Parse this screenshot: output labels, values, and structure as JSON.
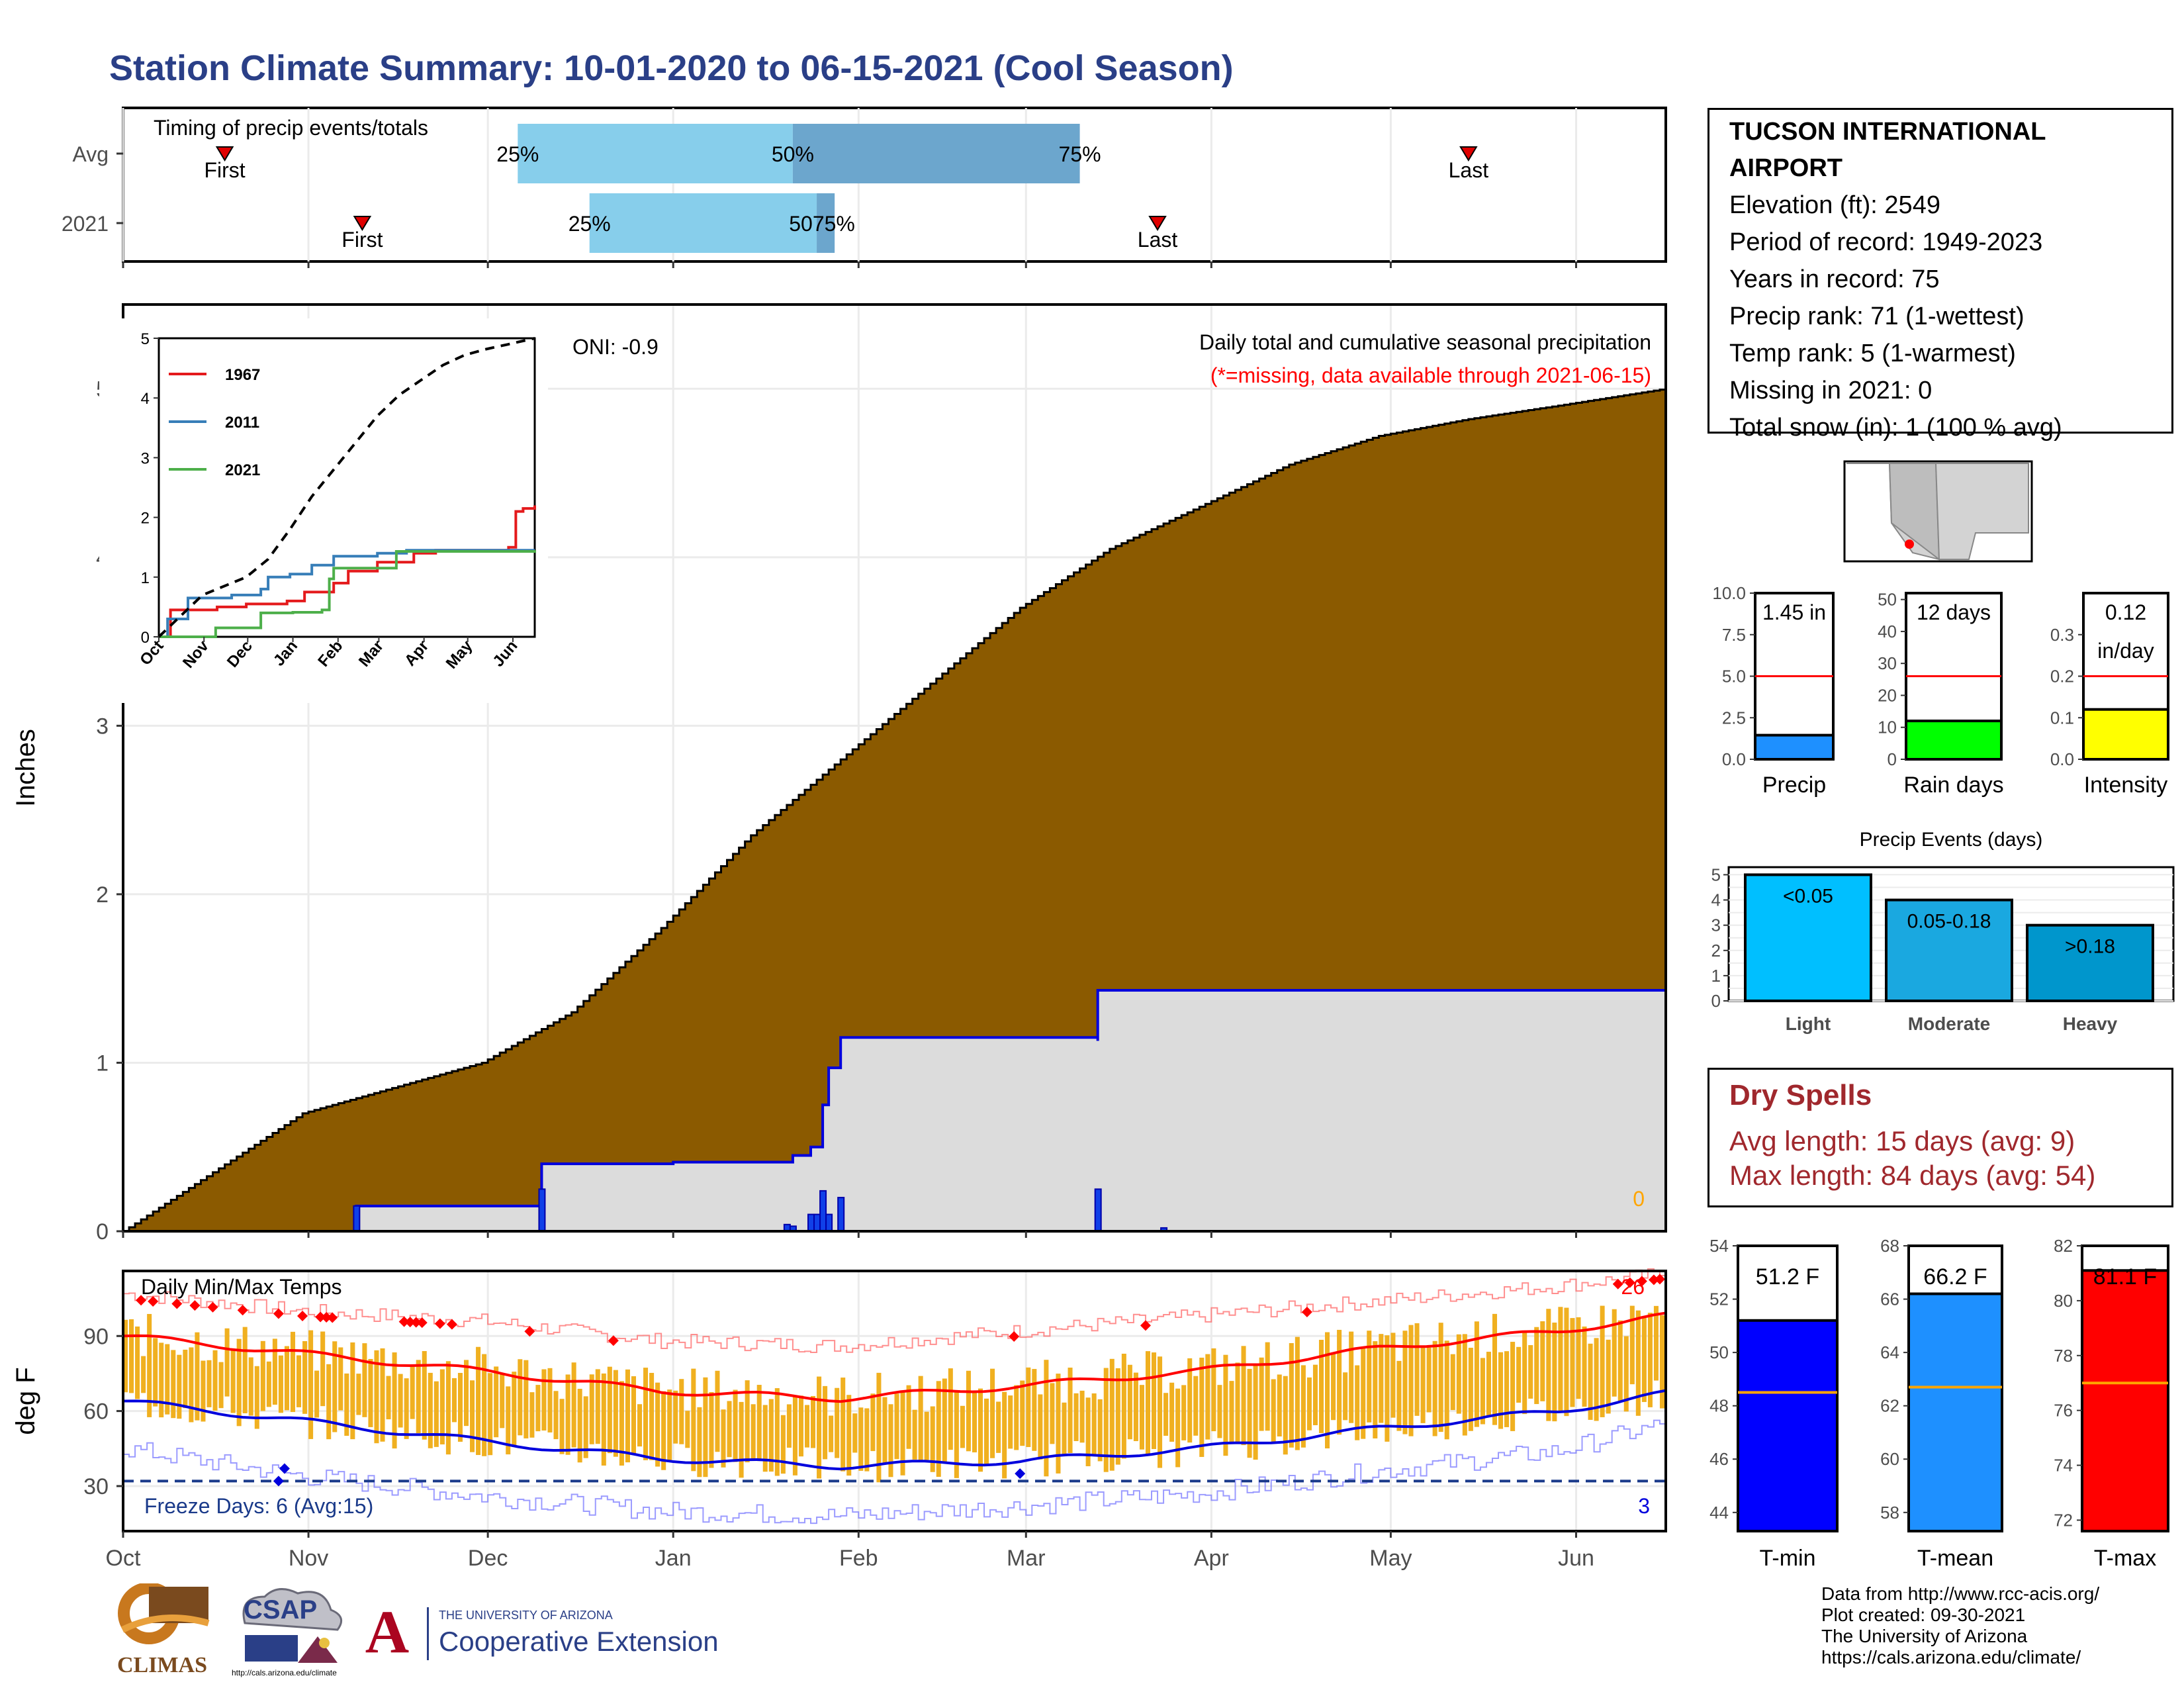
{
  "title": "Station Climate Summary: 10-01-2020 to 06-15-2021 (Cool Season)",
  "station": {
    "name": "TUCSON INTERNATIONAL AIRPORT",
    "elevation": "Elevation (ft): 2549",
    "period": "Period of record: 1949-2023",
    "years": "Years in record: 75",
    "precip_rank": "Precip rank: 71 (1-wettest)",
    "temp_rank": "Temp rank: 5 (1-warmest)",
    "missing": "Missing in 2021: 0",
    "snow": "Total snow (in): 1 (100 % avg)"
  },
  "dry_spells": {
    "heading": "Dry Spells",
    "avg": "Avg length: 15 days (avg: 9)",
    "max": "Max length: 84 days (avg: 54)"
  },
  "credits": {
    "line1": "Data from http://www.rcc-acis.org/",
    "line2": "Plot created: 09-30-2021",
    "line3": "The University of Arizona",
    "line4": "https://cals.arizona.edu/climate/"
  },
  "logos": {
    "climas": "CLIMAS",
    "csap": "CSAP",
    "csap_url": "http://cals.arizona.edu/climate",
    "ua_small": "THE UNIVERSITY OF ARIZONA",
    "ua_big": "Cooperative Extension",
    "ua_letter": "A"
  },
  "colors": {
    "title": "#2a3f87",
    "cum_avg": "#8b5a00",
    "cum_2021_fill": "#dcdcdc",
    "daily_bar": "#1040e8",
    "temp_bar": "#f0b020",
    "tmax_avg": "#ff0000",
    "tmin_avg": "#0000dd",
    "dry_spells": "#a0282d"
  },
  "chart_data": [
    {
      "type": "bar",
      "panel": "timing",
      "title": "Timing of precip events/totals",
      "categories": [
        "Avg",
        "2021"
      ],
      "series": [
        {
          "name": "Avg",
          "first": "10-18",
          "p25": "12-06",
          "p50": "01-21",
          "p75": "03-10",
          "last": "05-14"
        },
        {
          "name": "2021",
          "first": "11-10",
          "p25": "12-18",
          "p50": "01-25",
          "p75": "01-28",
          "last": "03-23"
        }
      ],
      "labels": {
        "first": "First",
        "last": "Last",
        "p25": "25%",
        "p50": "50%",
        "p75": "75%",
        "p50_p75_overlap": "5075%"
      }
    },
    {
      "type": "area",
      "panel": "main_precip",
      "ylabel": "Inches",
      "annotation_title": "Daily total and cumulative seasonal precipitation",
      "annotation_missing": "(*=missing, data available through 2021-06-15)",
      "oni": "ONI: -0.9",
      "missing_count": "0",
      "ylim": [
        0,
        5.5
      ],
      "yticks": [
        0,
        1,
        2,
        3,
        4,
        5
      ],
      "months": [
        "Oct",
        "Nov",
        "Dec",
        "Jan",
        "Feb",
        "Mar",
        "Apr",
        "May",
        "Jun"
      ],
      "avg_cumulative": [
        [
          0,
          0
        ],
        [
          30,
          0.7
        ],
        [
          60,
          1.0
        ],
        [
          75,
          1.3
        ],
        [
          90,
          1.8
        ],
        [
          105,
          2.35
        ],
        [
          120,
          2.8
        ],
        [
          135,
          3.25
        ],
        [
          150,
          3.7
        ],
        [
          165,
          4.05
        ],
        [
          180,
          4.3
        ],
        [
          195,
          4.55
        ],
        [
          210,
          4.72
        ],
        [
          225,
          4.82
        ],
        [
          240,
          4.9
        ],
        [
          258,
          5.0
        ]
      ],
      "y2021_cumulative": [
        [
          0,
          0
        ],
        [
          39,
          0.15
        ],
        [
          70,
          0.4
        ],
        [
          92,
          0.41
        ],
        [
          112,
          0.45
        ],
        [
          115,
          0.5
        ],
        [
          117,
          0.75
        ],
        [
          118,
          0.97
        ],
        [
          120,
          1.15
        ],
        [
          163,
          1.13
        ],
        [
          163,
          1.43
        ],
        [
          258,
          1.45
        ]
      ],
      "y2021_daily": [
        [
          39,
          0.15
        ],
        [
          70,
          0.25
        ],
        [
          111,
          0.04
        ],
        [
          112,
          0.03
        ],
        [
          115,
          0.1
        ],
        [
          116,
          0.1
        ],
        [
          117,
          0.24
        ],
        [
          118,
          0.1
        ],
        [
          120,
          0.2
        ],
        [
          163,
          0.25
        ],
        [
          174,
          0.02
        ]
      ]
    },
    {
      "type": "line",
      "panel": "inset",
      "ylim": [
        0,
        5
      ],
      "yticks": [
        0,
        1,
        2,
        3,
        4,
        5
      ],
      "months": [
        "Oct",
        "Nov",
        "Dec",
        "Jan",
        "Feb",
        "Mar",
        "Apr",
        "May",
        "Jun"
      ],
      "series": [
        {
          "name": "1967",
          "color": "#e41a1c",
          "points": [
            [
              0,
              0
            ],
            [
              8,
              0.45
            ],
            [
              40,
              0.5
            ],
            [
              60,
              0.55
            ],
            [
              88,
              0.6
            ],
            [
              100,
              0.75
            ],
            [
              120,
              0.9
            ],
            [
              130,
              1.1
            ],
            [
              150,
              1.25
            ],
            [
              165,
              1.25
            ],
            [
              175,
              1.4
            ],
            [
              190,
              1.45
            ],
            [
              210,
              1.45
            ],
            [
              240,
              1.5
            ],
            [
              245,
              2.1
            ],
            [
              250,
              2.15
            ],
            [
              258,
              2.2
            ]
          ]
        },
        {
          "name": "2011",
          "color": "#377eb8",
          "points": [
            [
              0,
              0
            ],
            [
              6,
              0.3
            ],
            [
              20,
              0.65
            ],
            [
              50,
              0.7
            ],
            [
              70,
              0.8
            ],
            [
              75,
              1.0
            ],
            [
              90,
              1.05
            ],
            [
              105,
              1.2
            ],
            [
              120,
              1.35
            ],
            [
              150,
              1.4
            ],
            [
              170,
              1.45
            ],
            [
              258,
              1.45
            ]
          ]
        },
        {
          "name": "2021",
          "color": "#4daf4a",
          "points": [
            [
              0,
              0
            ],
            [
              39,
              0.15
            ],
            [
              70,
              0.4
            ],
            [
              92,
              0.41
            ],
            [
              112,
              0.45
            ],
            [
              117,
              0.97
            ],
            [
              120,
              1.15
            ],
            [
              163,
              1.43
            ],
            [
              258,
              1.45
            ]
          ]
        },
        {
          "name": "avg",
          "color": "#000000",
          "dashed": true,
          "points": [
            [
              0,
              0
            ],
            [
              30,
              0.7
            ],
            [
              60,
              1.0
            ],
            [
              75,
              1.3
            ],
            [
              90,
              1.8
            ],
            [
              105,
              2.35
            ],
            [
              120,
              2.8
            ],
            [
              135,
              3.25
            ],
            [
              150,
              3.7
            ],
            [
              165,
              4.05
            ],
            [
              180,
              4.3
            ],
            [
              195,
              4.55
            ],
            [
              210,
              4.72
            ],
            [
              225,
              4.82
            ],
            [
              240,
              4.9
            ],
            [
              258,
              5.0
            ]
          ]
        }
      ]
    },
    {
      "type": "bar",
      "panel": "temps",
      "title": "Daily Min/Max Temps",
      "ylabel": "deg F",
      "ylim": [
        12,
        116
      ],
      "yticks": [
        30,
        60,
        90
      ],
      "months": [
        "Oct",
        "Nov",
        "Dec",
        "Jan",
        "Feb",
        "Mar",
        "Apr",
        "May",
        "Jun"
      ],
      "freeze_line": 32,
      "freeze_label": "Freeze Days: 6 (Avg:15)",
      "record_high_count": "26",
      "record_low_count": "3",
      "tmax_avg": [
        [
          0,
          90
        ],
        [
          30,
          83
        ],
        [
          60,
          76
        ],
        [
          90,
          68
        ],
        [
          120,
          65
        ],
        [
          150,
          70
        ],
        [
          180,
          76
        ],
        [
          210,
          85
        ],
        [
          240,
          92
        ],
        [
          258,
          98
        ]
      ],
      "tmin_avg": [
        [
          0,
          64
        ],
        [
          30,
          56
        ],
        [
          60,
          48
        ],
        [
          90,
          41
        ],
        [
          120,
          38
        ],
        [
          150,
          40
        ],
        [
          180,
          45
        ],
        [
          210,
          53
        ],
        [
          240,
          60
        ],
        [
          258,
          67
        ]
      ],
      "tmax_record": [
        [
          0,
          107
        ],
        [
          30,
          100
        ],
        [
          60,
          96
        ],
        [
          90,
          88
        ],
        [
          120,
          86
        ],
        [
          150,
          92
        ],
        [
          180,
          98
        ],
        [
          210,
          104
        ],
        [
          240,
          110
        ],
        [
          258,
          115
        ]
      ],
      "tmin_record": [
        [
          0,
          45
        ],
        [
          30,
          34
        ],
        [
          60,
          26
        ],
        [
          90,
          20
        ],
        [
          120,
          18
        ],
        [
          150,
          22
        ],
        [
          180,
          27
        ],
        [
          210,
          36
        ],
        [
          240,
          44
        ],
        [
          258,
          55
        ]
      ]
    },
    {
      "type": "bar",
      "panel": "precip_gauge",
      "categories": [
        "Precip"
      ],
      "values": [
        1.45
      ],
      "avg": 5.0,
      "ylim": [
        0,
        10
      ],
      "yticks": [
        0.0,
        2.5,
        5.0,
        7.5,
        10.0
      ],
      "value_label": "1.45 in",
      "color": "#1e90ff"
    },
    {
      "type": "bar",
      "panel": "raindays_gauge",
      "categories": [
        "Rain days"
      ],
      "values": [
        12
      ],
      "avg": 26,
      "ylim": [
        0,
        52
      ],
      "yticks": [
        0,
        10,
        20,
        30,
        40,
        50
      ],
      "value_label": "12 days",
      "color": "#00ff00"
    },
    {
      "type": "bar",
      "panel": "intensity_gauge",
      "categories": [
        "Intensity"
      ],
      "values": [
        0.12
      ],
      "avg": 0.2,
      "ylim": [
        0,
        0.4
      ],
      "yticks": [
        0.0,
        0.1,
        0.2,
        0.3
      ],
      "value_label": "0.12 in/day",
      "value_label_lines": [
        "0.12",
        "in/day"
      ],
      "color": "#ffff00"
    },
    {
      "type": "bar",
      "panel": "precip_events",
      "title": "Precip Events (days)",
      "categories": [
        "Light",
        "Moderate",
        "Heavy"
      ],
      "bar_labels": [
        "<0.05",
        "0.05-0.18",
        ">0.18"
      ],
      "values": [
        5,
        4,
        3
      ],
      "ylim": [
        0,
        5.3
      ],
      "yticks": [
        0,
        1,
        2,
        3,
        4,
        5
      ],
      "colors": [
        "#00bfff",
        "#1aa8e0",
        "#0096cc"
      ]
    },
    {
      "type": "bar",
      "panel": "tmin_gauge",
      "categories": [
        "T-min"
      ],
      "values": [
        51.2
      ],
      "avg": 48.5,
      "ylim": [
        43.3,
        54
      ],
      "yticks": [
        44,
        46,
        48,
        50,
        52,
        54
      ],
      "value_label": "51.2 F",
      "color": "#0000ff"
    },
    {
      "type": "bar",
      "panel": "tmean_gauge",
      "categories": [
        "T-mean"
      ],
      "values": [
        66.2
      ],
      "avg": 62.7,
      "ylim": [
        57.3,
        68
      ],
      "yticks": [
        58,
        60,
        62,
        64,
        66,
        68
      ],
      "value_label": "66.2 F",
      "color": "#1e90ff"
    },
    {
      "type": "bar",
      "panel": "tmax_gauge",
      "categories": [
        "T-max"
      ],
      "values": [
        81.1
      ],
      "avg": 77.0,
      "ylim": [
        71.6,
        82
      ],
      "yticks": [
        72,
        74,
        76,
        78,
        80,
        82
      ],
      "value_label": "81.1 F",
      "color": "#ff0000"
    }
  ]
}
